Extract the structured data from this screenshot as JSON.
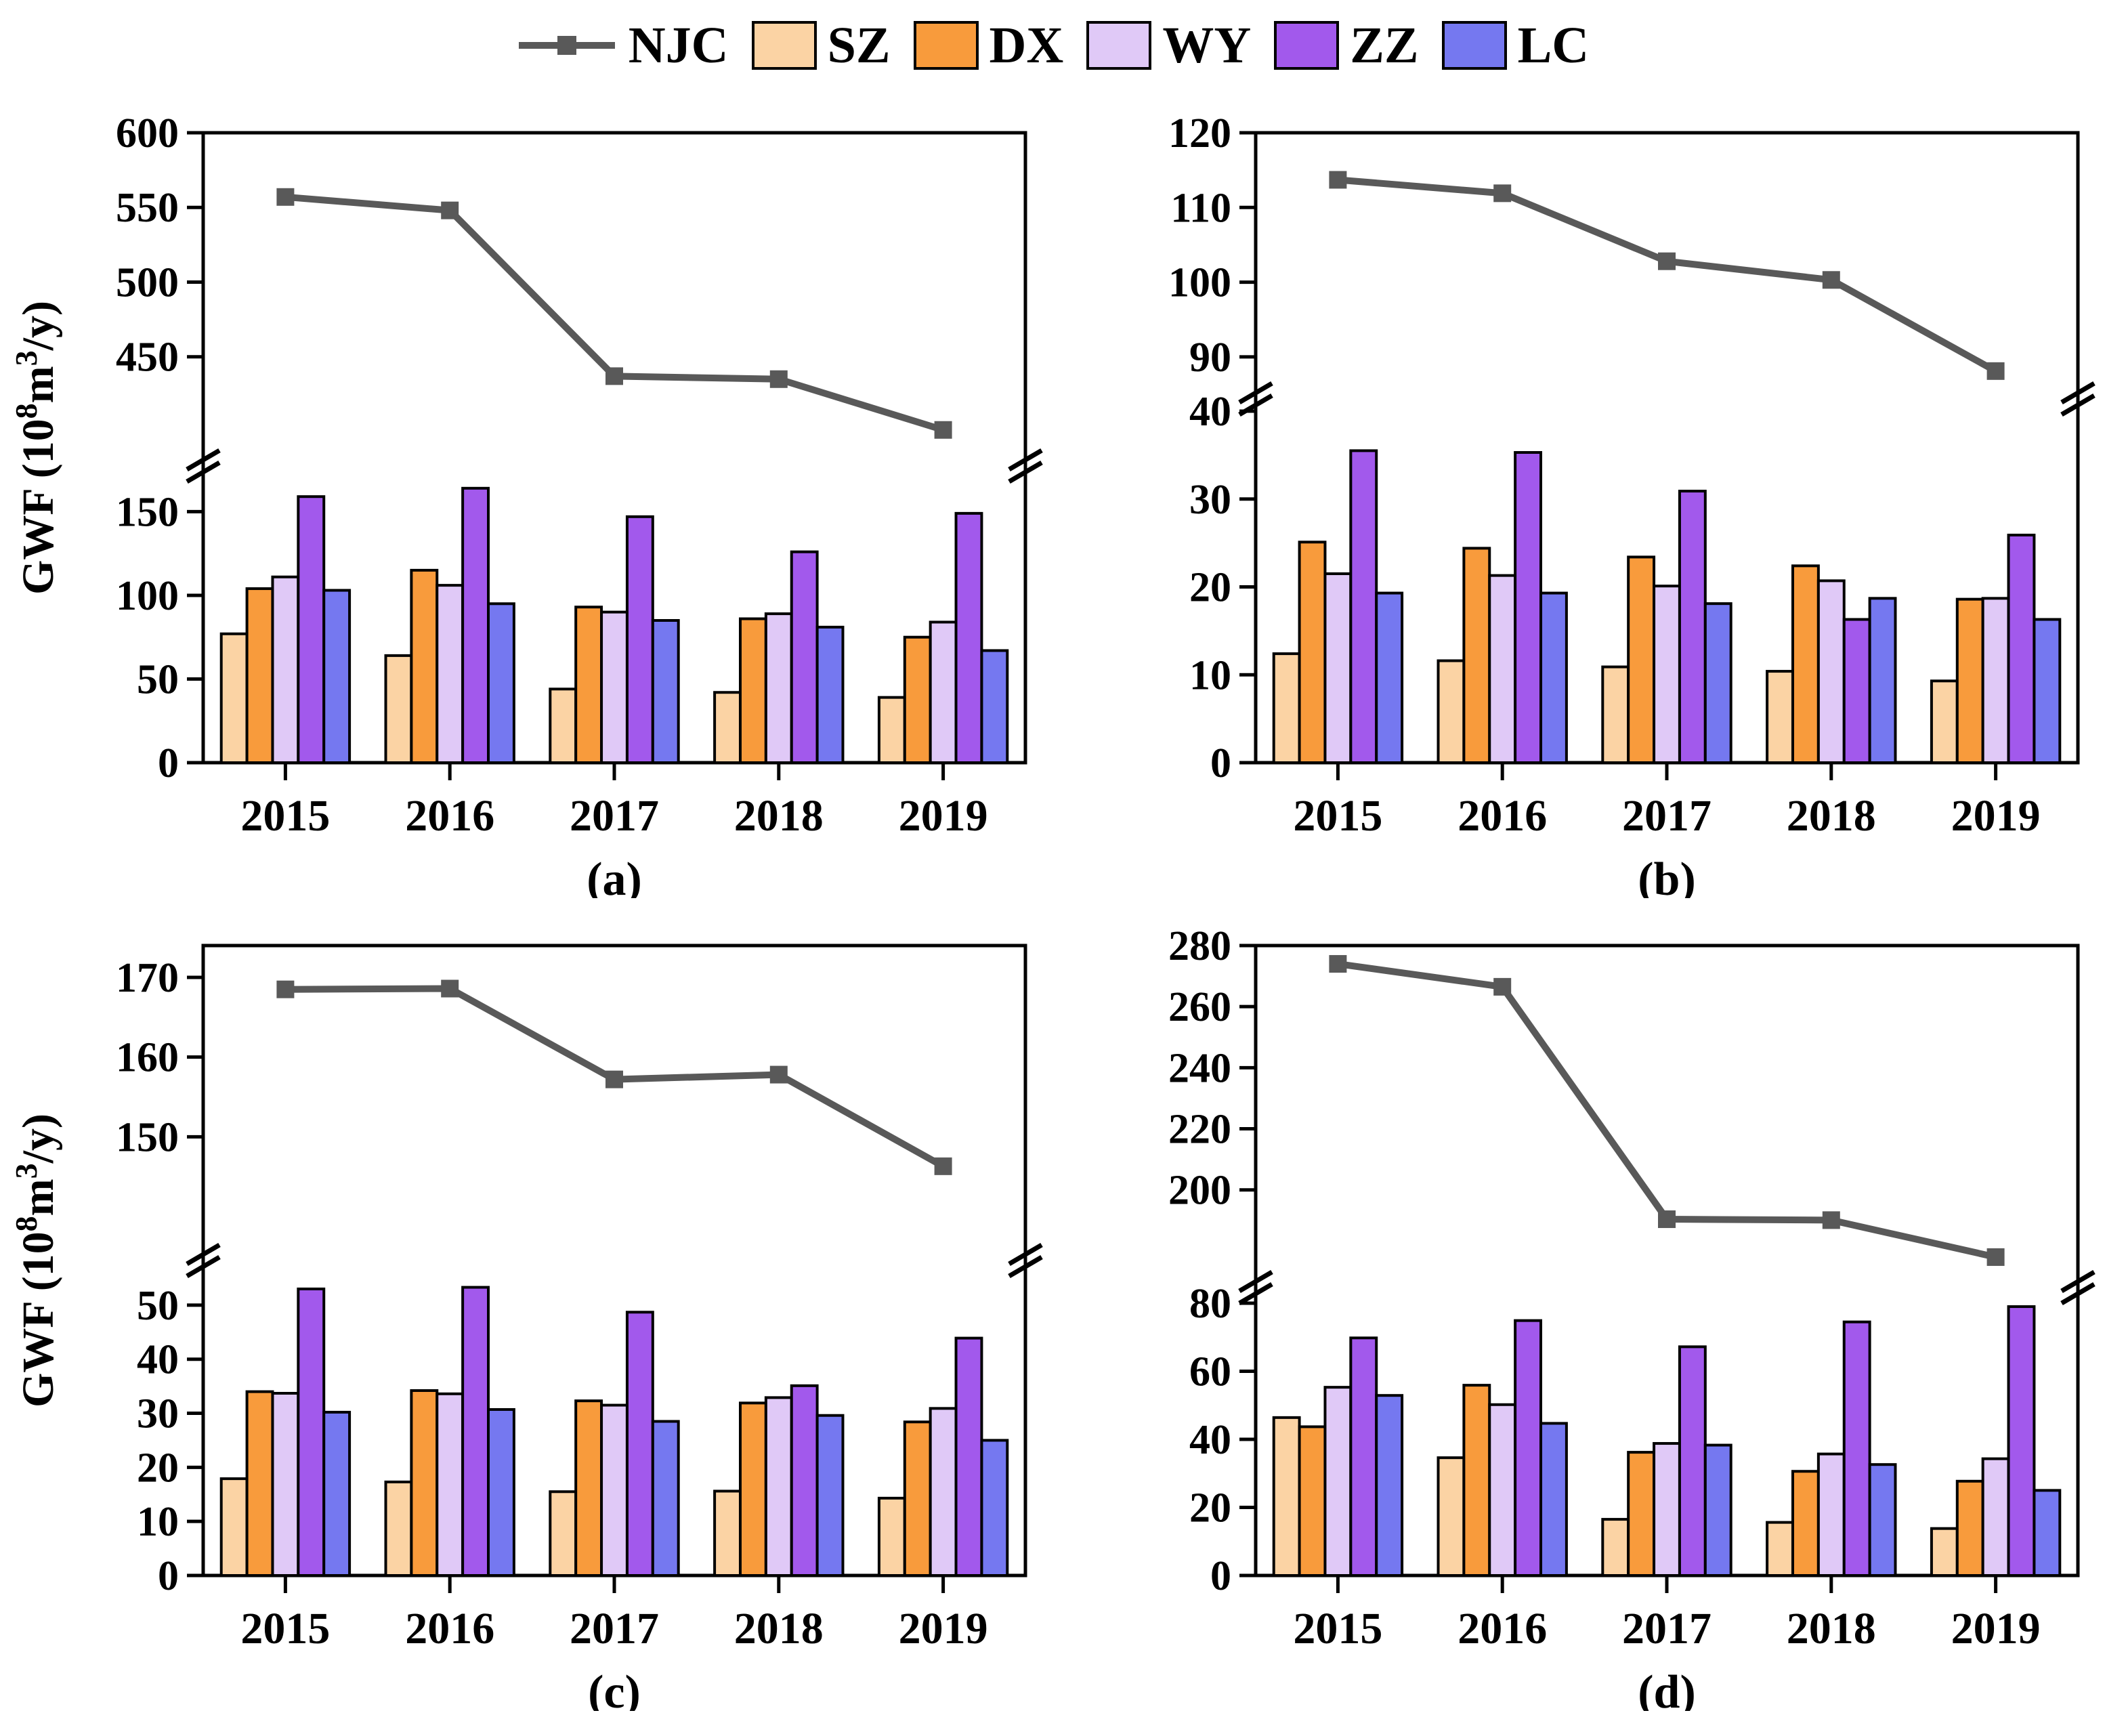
{
  "figure": {
    "y_axis_title": {
      "pre": "GWF (10",
      "sup1": "8",
      "mid": "m",
      "sup2": "3",
      "post": "/y)"
    },
    "frame_color": "#000000",
    "line_color": "#595959"
  },
  "legend": {
    "items": [
      {
        "id": "NJC",
        "label": "NJC",
        "type": "line",
        "color": "#595959"
      },
      {
        "id": "SZ",
        "label": "SZ",
        "type": "box",
        "color": "#FBD3A4"
      },
      {
        "id": "DX",
        "label": "DX",
        "type": "box",
        "color": "#F89B3C"
      },
      {
        "id": "WY",
        "label": "WY",
        "type": "box",
        "color": "#E0C9F7"
      },
      {
        "id": "ZZ",
        "label": "ZZ",
        "type": "box",
        "color": "#A259EC"
      },
      {
        "id": "LC",
        "label": "LC",
        "type": "box",
        "color": "#7578F0"
      }
    ]
  },
  "chart_data": [
    {
      "type": "bar+line",
      "panel_caption": "(a)",
      "has_ylabel": true,
      "upper_frac": 0.53,
      "categories": [
        "2015",
        "2016",
        "2017",
        "2018",
        "2019"
      ],
      "line_series": {
        "name": "NJC",
        "color": "#595959",
        "values": [
          557,
          548,
          437,
          435,
          401
        ]
      },
      "bar_series": [
        {
          "name": "SZ",
          "color": "#FBD3A4",
          "values": [
            77,
            64,
            44,
            42,
            39
          ]
        },
        {
          "name": "DX",
          "color": "#F89B3C",
          "values": [
            104,
            115,
            93,
            86,
            75
          ]
        },
        {
          "name": "WY",
          "color": "#E0C9F7",
          "values": [
            111,
            106,
            90,
            89,
            84
          ]
        },
        {
          "name": "ZZ",
          "color": "#A259EC",
          "values": [
            159,
            164,
            147,
            126,
            149
          ]
        },
        {
          "name": "LC",
          "color": "#7578F0",
          "values": [
            103,
            95,
            85,
            81,
            67
          ]
        }
      ],
      "upper_axis": {
        "min": 385,
        "max": 600,
        "ticks": [
          450,
          500,
          550,
          600
        ]
      },
      "lower_axis": {
        "min": 0,
        "max": 170,
        "ticks": [
          0,
          50,
          100,
          150
        ]
      }
    },
    {
      "type": "bar+line",
      "panel_caption": "(b)",
      "has_ylabel": false,
      "upper_frac": 0.42,
      "categories": [
        "2015",
        "2016",
        "2017",
        "2018",
        "2019"
      ],
      "line_series": {
        "name": "NJC",
        "color": "#595959",
        "values": [
          113.7,
          111.9,
          102.8,
          100.3,
          88.1
        ]
      },
      "bar_series": [
        {
          "name": "SZ",
          "color": "#FBD3A4",
          "values": [
            12.4,
            11.6,
            10.9,
            10.4,
            9.3
          ]
        },
        {
          "name": "DX",
          "color": "#F89B3C",
          "values": [
            25.1,
            24.4,
            23.4,
            22.4,
            18.6
          ]
        },
        {
          "name": "WY",
          "color": "#E0C9F7",
          "values": [
            21.5,
            21.3,
            20.1,
            20.7,
            18.7
          ]
        },
        {
          "name": "ZZ",
          "color": "#A259EC",
          "values": [
            35.5,
            35.3,
            30.9,
            16.3,
            25.9
          ]
        },
        {
          "name": "LC",
          "color": "#7578F0",
          "values": [
            19.3,
            19.3,
            18.1,
            18.7,
            16.3
          ]
        }
      ],
      "upper_axis": {
        "min": 86,
        "max": 120,
        "ticks": [
          90,
          100,
          110,
          120
        ]
      },
      "lower_axis": {
        "min": 0,
        "max": 40,
        "ticks": [
          0,
          10,
          20,
          30,
          40
        ]
      }
    },
    {
      "type": "bar+line",
      "panel_caption": "(c)",
      "has_ylabel": true,
      "upper_frac": 0.5,
      "categories": [
        "2015",
        "2016",
        "2017",
        "2018",
        "2019"
      ],
      "line_series": {
        "name": "NJC",
        "color": "#595959",
        "values": [
          168.5,
          168.6,
          157.2,
          157.8,
          146.3
        ]
      },
      "bar_series": [
        {
          "name": "SZ",
          "color": "#FBD3A4",
          "values": [
            17.9,
            17.3,
            15.5,
            15.6,
            14.3
          ]
        },
        {
          "name": "DX",
          "color": "#F89B3C",
          "values": [
            34.0,
            34.2,
            32.3,
            31.9,
            28.4
          ]
        },
        {
          "name": "WY",
          "color": "#E0C9F7",
          "values": [
            33.7,
            33.6,
            31.5,
            32.9,
            30.9
          ]
        },
        {
          "name": "ZZ",
          "color": "#A259EC",
          "values": [
            53.0,
            53.3,
            48.7,
            35.1,
            43.9
          ]
        },
        {
          "name": "LC",
          "color": "#7578F0",
          "values": [
            30.2,
            30.7,
            28.5,
            29.6,
            25.0
          ]
        }
      ],
      "upper_axis": {
        "min": 136,
        "max": 174,
        "ticks": [
          150,
          160,
          170
        ]
      },
      "lower_axis": {
        "min": 0,
        "max": 56,
        "ticks": [
          0,
          10,
          20,
          30,
          40,
          50
        ]
      }
    },
    {
      "type": "bar+line",
      "panel_caption": "(d)",
      "has_ylabel": false,
      "upper_frac": 0.545,
      "categories": [
        "2015",
        "2016",
        "2017",
        "2018",
        "2019"
      ],
      "line_series": {
        "name": "NJC",
        "color": "#595959",
        "values": [
          274.0,
          266.5,
          190.4,
          190.1,
          178.0
        ]
      },
      "bar_series": [
        {
          "name": "SZ",
          "color": "#FBD3A4",
          "values": [
            46.4,
            34.6,
            16.5,
            15.6,
            13.8
          ]
        },
        {
          "name": "DX",
          "color": "#F89B3C",
          "values": [
            43.7,
            55.9,
            36.2,
            30.6,
            27.7
          ]
        },
        {
          "name": "WY",
          "color": "#E0C9F7",
          "values": [
            55.3,
            50.2,
            38.8,
            35.7,
            34.3
          ]
        },
        {
          "name": "ZZ",
          "color": "#A259EC",
          "values": [
            69.8,
            74.9,
            67.2,
            74.5,
            79.0
          ]
        },
        {
          "name": "LC",
          "color": "#7578F0",
          "values": [
            52.9,
            44.7,
            38.3,
            32.6,
            25.0
          ]
        }
      ],
      "upper_axis": {
        "min": 172,
        "max": 280,
        "ticks": [
          200,
          220,
          240,
          260,
          280
        ]
      },
      "lower_axis": {
        "min": 0,
        "max": 81,
        "ticks": [
          0,
          20,
          40,
          60,
          80
        ]
      }
    }
  ]
}
